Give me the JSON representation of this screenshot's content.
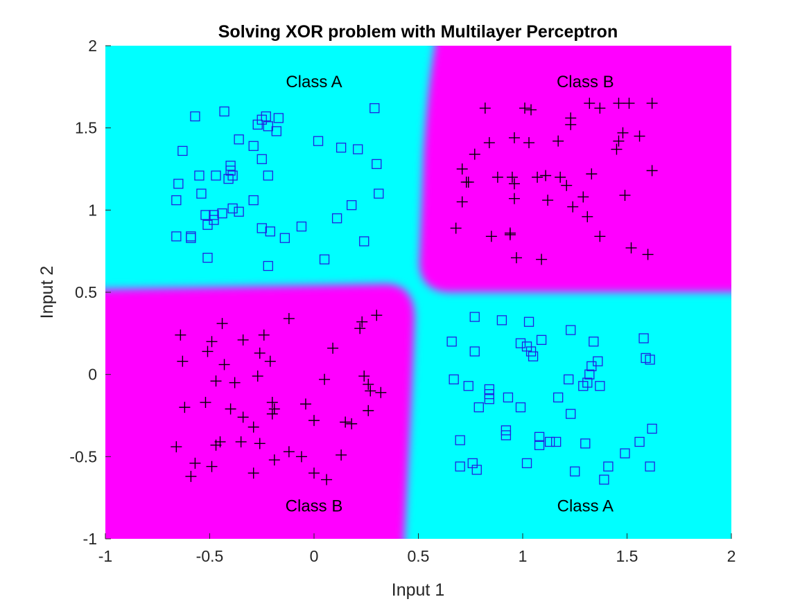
{
  "chart_data": {
    "type": "scatter",
    "title": "Solving XOR problem with Multilayer Perceptron",
    "xlabel": "Input 1",
    "ylabel": "Input 2",
    "xlim": [
      -1,
      2
    ],
    "ylim": [
      -1,
      2
    ],
    "xticks": [
      -1,
      -0.5,
      0,
      0.5,
      1,
      1.5,
      2
    ],
    "yticks": [
      -1,
      -0.5,
      0,
      0.5,
      1,
      1.5,
      2
    ],
    "xtick_labels": [
      "-1",
      "-0.5",
      "0",
      "0.5",
      "1",
      "1.5",
      "2"
    ],
    "ytick_labels": [
      "-1",
      "-0.5",
      "0",
      "0.5",
      "1",
      "1.5",
      "2"
    ],
    "grid": false,
    "background_regions": {
      "class_a_color": "#00ffff",
      "class_b_color": "#ff00ff",
      "boundary_x": 0.5,
      "boundary_y": 0.5
    },
    "region_labels": [
      {
        "text": "Class A",
        "x": 0,
        "y": 1.78
      },
      {
        "text": "Class B",
        "x": 1.3,
        "y": 1.78
      },
      {
        "text": "Class B",
        "x": 0,
        "y": -0.8
      },
      {
        "text": "Class A",
        "x": 1.3,
        "y": -0.8
      }
    ],
    "series": [
      {
        "marker": "square",
        "color": "#2020e0",
        "points": [
          [
            -0.57,
            1.57
          ],
          [
            -0.43,
            1.6
          ],
          [
            -0.23,
            1.57
          ],
          [
            -0.17,
            1.56
          ],
          [
            0.29,
            1.62
          ],
          [
            -0.25,
            1.55
          ],
          [
            -0.27,
            1.52
          ],
          [
            -0.22,
            1.51
          ],
          [
            -0.18,
            1.48
          ],
          [
            -0.36,
            1.43
          ],
          [
            0.02,
            1.42
          ],
          [
            -0.29,
            1.39
          ],
          [
            0.13,
            1.38
          ],
          [
            0.21,
            1.37
          ],
          [
            -0.63,
            1.36
          ],
          [
            -0.25,
            1.31
          ],
          [
            0.3,
            1.28
          ],
          [
            -0.4,
            1.27
          ],
          [
            -0.4,
            1.24
          ],
          [
            -0.55,
            1.21
          ],
          [
            -0.47,
            1.21
          ],
          [
            -0.39,
            1.21
          ],
          [
            -0.22,
            1.21
          ],
          [
            -0.41,
            1.19
          ],
          [
            -0.65,
            1.16
          ],
          [
            -0.54,
            1.1
          ],
          [
            0.31,
            1.1
          ],
          [
            -0.66,
            1.06
          ],
          [
            -0.29,
            1.06
          ],
          [
            0.18,
            1.03
          ],
          [
            -0.39,
            1.01
          ],
          [
            -0.36,
            0.99
          ],
          [
            -0.52,
            0.97
          ],
          [
            -0.48,
            0.97
          ],
          [
            -0.44,
            0.98
          ],
          [
            -0.48,
            0.94
          ],
          [
            0.11,
            0.95
          ],
          [
            -0.51,
            0.91
          ],
          [
            -0.25,
            0.89
          ],
          [
            -0.21,
            0.87
          ],
          [
            -0.06,
            0.9
          ],
          [
            -0.66,
            0.84
          ],
          [
            -0.59,
            0.84
          ],
          [
            -0.59,
            0.83
          ],
          [
            -0.14,
            0.83
          ],
          [
            0.24,
            0.81
          ],
          [
            -0.51,
            0.71
          ],
          [
            0.05,
            0.7
          ],
          [
            -0.22,
            0.66
          ],
          [
            0.77,
            0.35
          ],
          [
            0.9,
            0.33
          ],
          [
            1.03,
            0.32
          ],
          [
            1.23,
            0.27
          ],
          [
            0.66,
            0.2
          ],
          [
            0.99,
            0.19
          ],
          [
            1.09,
            0.21
          ],
          [
            1.34,
            0.2
          ],
          [
            1.58,
            0.22
          ],
          [
            1.02,
            0.17
          ],
          [
            1.04,
            0.14
          ],
          [
            0.77,
            0.14
          ],
          [
            1.05,
            0.11
          ],
          [
            1.59,
            0.1
          ],
          [
            1.61,
            0.09
          ],
          [
            1.36,
            0.08
          ],
          [
            1.33,
            0.05
          ],
          [
            1.32,
            0.0
          ],
          [
            0.67,
            -0.03
          ],
          [
            1.22,
            -0.03
          ],
          [
            1.31,
            -0.05
          ],
          [
            0.74,
            -0.07
          ],
          [
            1.29,
            -0.07
          ],
          [
            1.37,
            -0.07
          ],
          [
            0.84,
            -0.09
          ],
          [
            0.84,
            -0.12
          ],
          [
            0.84,
            -0.15
          ],
          [
            0.93,
            -0.14
          ],
          [
            1.17,
            -0.14
          ],
          [
            0.79,
            -0.2
          ],
          [
            0.99,
            -0.2
          ],
          [
            1.23,
            -0.24
          ],
          [
            1.62,
            -0.33
          ],
          [
            0.92,
            -0.34
          ],
          [
            0.92,
            -0.37
          ],
          [
            1.08,
            -0.38
          ],
          [
            0.7,
            -0.4
          ],
          [
            1.13,
            -0.41
          ],
          [
            1.08,
            -0.43
          ],
          [
            1.3,
            -0.42
          ],
          [
            1.16,
            -0.41
          ],
          [
            1.56,
            -0.41
          ],
          [
            1.49,
            -0.48
          ],
          [
            1.02,
            -0.54
          ],
          [
            0.76,
            -0.54
          ],
          [
            0.7,
            -0.56
          ],
          [
            0.78,
            -0.58
          ],
          [
            1.25,
            -0.59
          ],
          [
            1.41,
            -0.56
          ],
          [
            1.61,
            -0.56
          ],
          [
            1.39,
            -0.64
          ]
        ]
      },
      {
        "marker": "plus",
        "color": "#000000",
        "points": [
          [
            0.82,
            1.62
          ],
          [
            1.01,
            1.62
          ],
          [
            1.04,
            1.61
          ],
          [
            1.32,
            1.65
          ],
          [
            1.46,
            1.65
          ],
          [
            1.51,
            1.65
          ],
          [
            1.62,
            1.65
          ],
          [
            1.37,
            1.62
          ],
          [
            1.23,
            1.56
          ],
          [
            1.23,
            1.52
          ],
          [
            1.48,
            1.47
          ],
          [
            0.84,
            1.41
          ],
          [
            0.96,
            1.44
          ],
          [
            1.03,
            1.41
          ],
          [
            1.17,
            1.42
          ],
          [
            1.46,
            1.42
          ],
          [
            1.56,
            1.45
          ],
          [
            0.77,
            1.34
          ],
          [
            1.45,
            1.37
          ],
          [
            0.71,
            1.25
          ],
          [
            0.73,
            1.17
          ],
          [
            0.74,
            1.17
          ],
          [
            0.88,
            1.2
          ],
          [
            0.95,
            1.2
          ],
          [
            0.96,
            1.16
          ],
          [
            1.07,
            1.2
          ],
          [
            1.11,
            1.21
          ],
          [
            1.18,
            1.2
          ],
          [
            1.33,
            1.22
          ],
          [
            1.62,
            1.24
          ],
          [
            1.21,
            1.15
          ],
          [
            0.71,
            1.05
          ],
          [
            0.96,
            1.07
          ],
          [
            1.12,
            1.06
          ],
          [
            1.24,
            1.02
          ],
          [
            1.29,
            1.08
          ],
          [
            1.49,
            1.09
          ],
          [
            1.31,
            0.96
          ],
          [
            0.68,
            0.89
          ],
          [
            0.85,
            0.84
          ],
          [
            0.94,
            0.85
          ],
          [
            0.94,
            0.86
          ],
          [
            1.37,
            0.84
          ],
          [
            1.52,
            0.77
          ],
          [
            1.6,
            0.73
          ],
          [
            0.97,
            0.71
          ],
          [
            1.09,
            0.7
          ],
          [
            -0.64,
            0.24
          ],
          [
            -0.24,
            0.24
          ],
          [
            -0.44,
            0.31
          ],
          [
            -0.12,
            0.34
          ],
          [
            0.23,
            0.32
          ],
          [
            0.3,
            0.36
          ],
          [
            -0.49,
            0.2
          ],
          [
            -0.34,
            0.21
          ],
          [
            0.22,
            0.28
          ],
          [
            -0.51,
            0.14
          ],
          [
            -0.26,
            0.13
          ],
          [
            0.09,
            0.16
          ],
          [
            -0.63,
            0.08
          ],
          [
            -0.21,
            0.08
          ],
          [
            -0.43,
            0.06
          ],
          [
            -0.47,
            -0.04
          ],
          [
            -0.38,
            -0.05
          ],
          [
            -0.27,
            -0.01
          ],
          [
            0.05,
            -0.03
          ],
          [
            0.24,
            -0.01
          ],
          [
            0.26,
            -0.06
          ],
          [
            0.27,
            -0.1
          ],
          [
            0.32,
            -0.11
          ],
          [
            -0.2,
            -0.17
          ],
          [
            -0.19,
            -0.21
          ],
          [
            -0.04,
            -0.18
          ],
          [
            -0.52,
            -0.17
          ],
          [
            -0.62,
            -0.2
          ],
          [
            -0.4,
            -0.21
          ],
          [
            -0.2,
            -0.24
          ],
          [
            -0.34,
            -0.26
          ],
          [
            0.26,
            -0.22
          ],
          [
            0.0,
            -0.28
          ],
          [
            0.15,
            -0.29
          ],
          [
            0.18,
            -0.3
          ],
          [
            -0.29,
            -0.32
          ],
          [
            -0.66,
            -0.44
          ],
          [
            -0.45,
            -0.41
          ],
          [
            -0.35,
            -0.41
          ],
          [
            -0.26,
            -0.42
          ],
          [
            -0.47,
            -0.43
          ],
          [
            -0.12,
            -0.47
          ],
          [
            -0.06,
            -0.5
          ],
          [
            -0.19,
            -0.52
          ],
          [
            0.13,
            -0.49
          ],
          [
            -0.57,
            -0.54
          ],
          [
            -0.49,
            -0.56
          ],
          [
            -0.29,
            -0.6
          ],
          [
            0.0,
            -0.6
          ],
          [
            0.06,
            -0.64
          ],
          [
            -0.59,
            -0.62
          ]
        ]
      }
    ]
  }
}
